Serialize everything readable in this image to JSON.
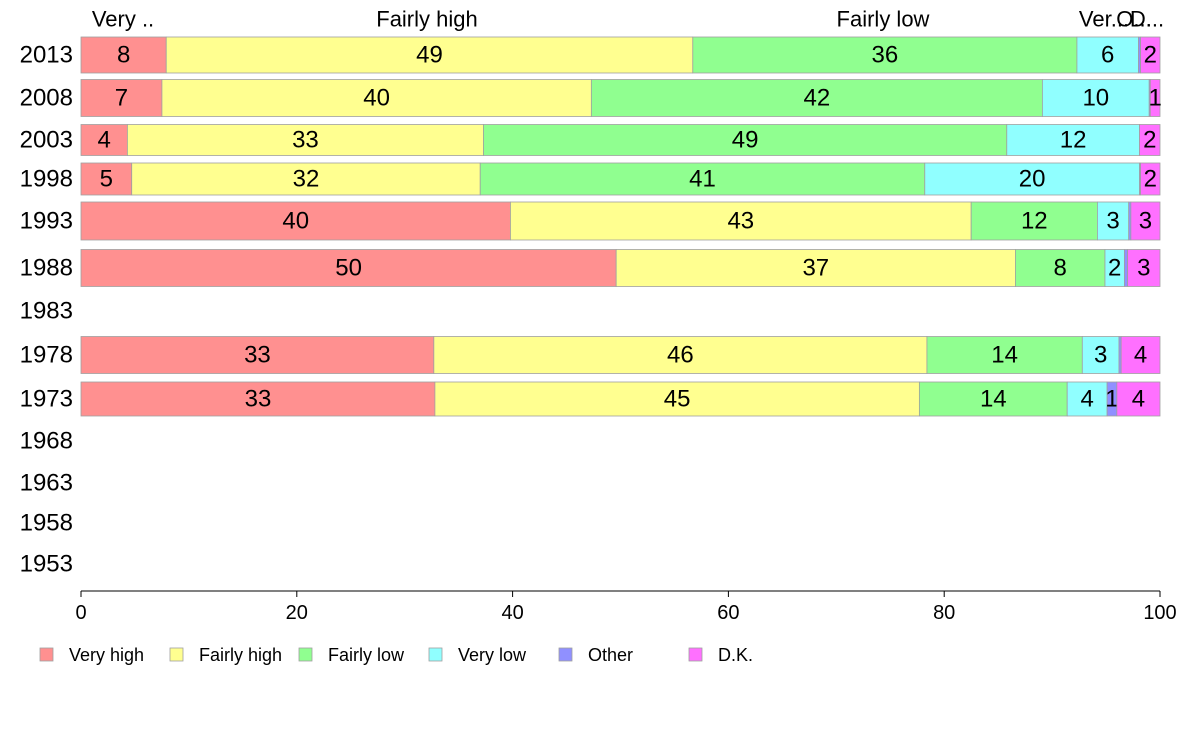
{
  "chart_data": {
    "type": "bar",
    "orientation": "horizontal",
    "stacked": true,
    "categories": [
      "2013",
      "2008",
      "2003",
      "1998",
      "1993",
      "1988",
      "1983",
      "1978",
      "1973",
      "1968",
      "1963",
      "1958",
      "1953"
    ],
    "series": [
      {
        "name": "Very high",
        "color": "#ff9090",
        "values": [
          7.9,
          7.5,
          4.3,
          4.7,
          39.8,
          49.6,
          null,
          32.7,
          32.8,
          null,
          null,
          null,
          null
        ]
      },
      {
        "name": "Fairly high",
        "color": "#ffff90",
        "values": [
          48.8,
          39.8,
          33.0,
          32.3,
          42.7,
          37.0,
          null,
          45.7,
          44.9,
          null,
          null,
          null,
          null
        ]
      },
      {
        "name": "Fairly low",
        "color": "#90ff90",
        "values": [
          35.6,
          41.8,
          48.5,
          41.2,
          11.7,
          8.3,
          null,
          14.4,
          13.7,
          null,
          null,
          null,
          null
        ]
      },
      {
        "name": "Very low",
        "color": "#90ffff",
        "values": [
          5.7,
          9.9,
          12.3,
          19.9,
          2.9,
          1.8,
          null,
          3.4,
          3.7,
          null,
          null,
          null,
          null
        ]
      },
      {
        "name": "Other",
        "color": "#9090ff",
        "values": [
          0.2,
          0.1,
          0.0,
          0.1,
          0.2,
          0.3,
          null,
          0.2,
          0.9,
          null,
          null,
          null,
          null
        ]
      },
      {
        "name": "D.K.",
        "color": "#ff70ff",
        "values": [
          1.8,
          0.9,
          1.9,
          1.8,
          2.7,
          3.0,
          null,
          3.6,
          4.0,
          null,
          null,
          null,
          null
        ]
      }
    ],
    "value_labels": [
      [
        "8",
        "49",
        "36",
        "6",
        "",
        "2"
      ],
      [
        "7",
        "40",
        "42",
        "10",
        "",
        "1"
      ],
      [
        "4",
        "33",
        "49",
        "12",
        "",
        "2"
      ],
      [
        "5",
        "32",
        "41",
        "20",
        "",
        "2"
      ],
      [
        "40",
        "43",
        "12",
        "3",
        "",
        "3"
      ],
      [
        "50",
        "37",
        "8",
        "2",
        "",
        "3"
      ],
      [
        "",
        "",
        "",
        "",
        "",
        ""
      ],
      [
        "33",
        "46",
        "14",
        "3",
        "",
        "4"
      ],
      [
        "33",
        "45",
        "14",
        "4",
        "1",
        "4"
      ],
      [
        "",
        "",
        "",
        "",
        "",
        ""
      ],
      [
        "",
        "",
        "",
        "",
        "",
        ""
      ],
      [
        "",
        "",
        "",
        "",
        "",
        ""
      ],
      [
        "",
        "",
        "",
        "",
        "",
        ""
      ]
    ],
    "top_labels": [
      "Very ..",
      "Fairly high",
      "Fairly low",
      "Ver...",
      "O...",
      "D..."
    ],
    "xlim": [
      0,
      100
    ],
    "xticks": [
      "0",
      "20",
      "40",
      "60",
      "80",
      "100"
    ],
    "grid": false,
    "legend_position": "bottom",
    "legend": [
      "Very high",
      "Fairly high",
      "Fairly low",
      "Very low",
      "Other",
      "D.K."
    ]
  }
}
